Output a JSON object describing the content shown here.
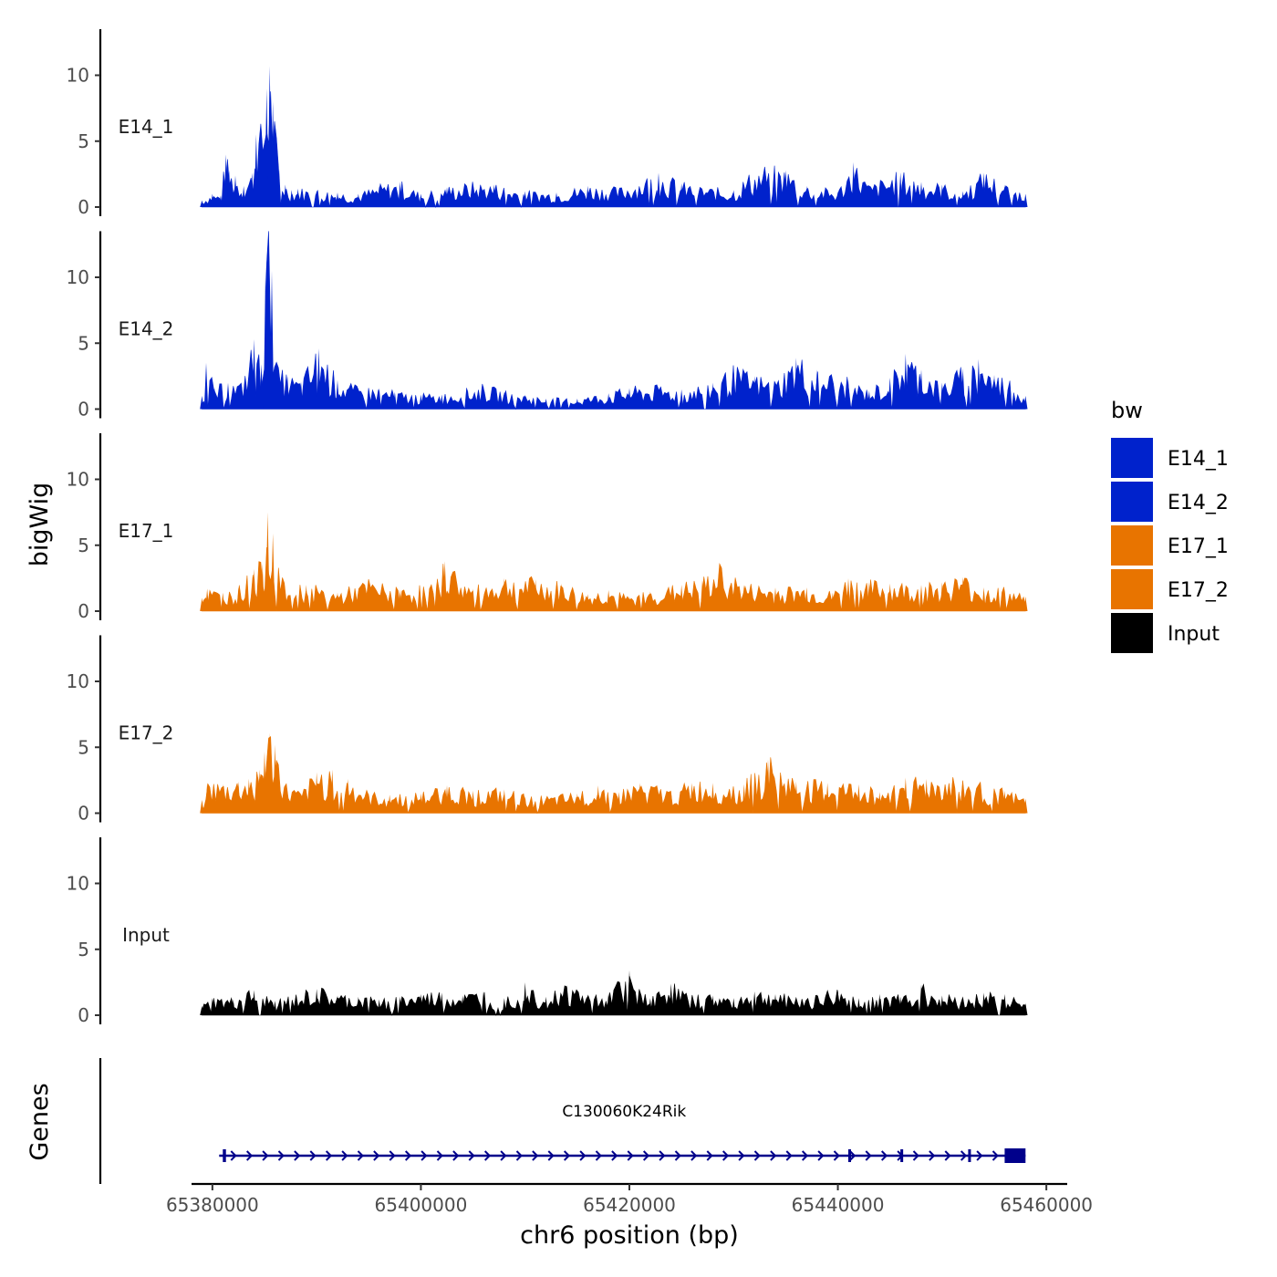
{
  "chart_data": {
    "type": "area",
    "chromosome": "chr6",
    "xlabel": "chr6 position (bp)",
    "ylabel_tracks": "bigWig",
    "ylabel_genes": "Genes",
    "xlim": [
      65378000,
      65462000
    ],
    "data_range": [
      65379000,
      65458000
    ],
    "x_ticks": [
      65380000,
      65400000,
      65420000,
      65440000,
      65460000
    ],
    "x_tick_labels": [
      "65380000",
      "65400000",
      "65420000",
      "65440000",
      "65460000"
    ],
    "ylim": [
      0,
      13.5
    ],
    "y_ticks": [
      0,
      5,
      10
    ],
    "y_tick_labels": [
      "0",
      "5",
      "10"
    ],
    "series": [
      {
        "name": "E14_1",
        "color": "#0022CC",
        "peaks": [
          [
            65379000,
            0.5
          ],
          [
            65380000,
            1.0
          ],
          [
            65380800,
            0.9
          ],
          [
            65381300,
            4.0
          ],
          [
            65381600,
            2.8
          ],
          [
            65382200,
            2.4
          ],
          [
            65383000,
            1.6
          ],
          [
            65383800,
            2.6
          ],
          [
            65384200,
            5.5
          ],
          [
            65384700,
            6.0
          ],
          [
            65385200,
            9.0
          ],
          [
            65385500,
            10.7
          ],
          [
            65385800,
            8.0
          ],
          [
            65386400,
            2.9
          ],
          [
            65387000,
            1.7
          ],
          [
            65387600,
            1.3
          ],
          [
            65388200,
            1.4
          ],
          [
            65390000,
            1.3
          ],
          [
            65392000,
            1.1
          ],
          [
            65394000,
            1.0
          ],
          [
            65396000,
            1.6
          ],
          [
            65398000,
            1.9
          ],
          [
            65400000,
            1.0
          ],
          [
            65402500,
            1.5
          ],
          [
            65405000,
            1.8
          ],
          [
            65407000,
            1.7
          ],
          [
            65410000,
            1.2
          ],
          [
            65413000,
            1.1
          ],
          [
            65416000,
            1.6
          ],
          [
            65419000,
            1.4
          ],
          [
            65422800,
            2.6
          ],
          [
            65425000,
            1.8
          ],
          [
            65428000,
            1.4
          ],
          [
            65430000,
            1.3
          ],
          [
            65431500,
            2.4
          ],
          [
            65433000,
            3.0
          ],
          [
            65435000,
            2.8
          ],
          [
            65437000,
            1.6
          ],
          [
            65440000,
            1.2
          ],
          [
            65441500,
            3.4
          ],
          [
            65443000,
            1.6
          ],
          [
            65446000,
            2.6
          ],
          [
            65448000,
            1.9
          ],
          [
            65450000,
            1.7
          ],
          [
            65452000,
            1.2
          ],
          [
            65454000,
            2.6
          ],
          [
            65456000,
            1.7
          ],
          [
            65458000,
            1.0
          ]
        ]
      },
      {
        "name": "E14_2",
        "color": "#0022CC",
        "peaks": [
          [
            65379000,
            1.0
          ],
          [
            65379400,
            3.5
          ],
          [
            65380200,
            1.6
          ],
          [
            65381500,
            2.0
          ],
          [
            65382800,
            1.9
          ],
          [
            65384000,
            5.3
          ],
          [
            65384700,
            3.4
          ],
          [
            65385100,
            11.0
          ],
          [
            65385400,
            13.0
          ],
          [
            65385700,
            10.5
          ],
          [
            65386200,
            3.0
          ],
          [
            65387200,
            2.5
          ],
          [
            65388500,
            2.1
          ],
          [
            65390200,
            4.6
          ],
          [
            65392000,
            2.2
          ],
          [
            65394000,
            1.6
          ],
          [
            65396000,
            1.6
          ],
          [
            65397500,
            1.3
          ],
          [
            65400000,
            1.1
          ],
          [
            65402000,
            1.1
          ],
          [
            65404500,
            1.5
          ],
          [
            65406000,
            1.8
          ],
          [
            65408000,
            1.3
          ],
          [
            65410000,
            1.1
          ],
          [
            65412000,
            0.8
          ],
          [
            65415000,
            0.8
          ],
          [
            65418000,
            1.2
          ],
          [
            65420000,
            1.6
          ],
          [
            65423000,
            1.7
          ],
          [
            65425000,
            1.5
          ],
          [
            65428000,
            2.0
          ],
          [
            65430000,
            3.1
          ],
          [
            65432000,
            2.5
          ],
          [
            65434000,
            2.1
          ],
          [
            65436000,
            3.9
          ],
          [
            65438000,
            3.0
          ],
          [
            65441000,
            2.2
          ],
          [
            65443000,
            1.4
          ],
          [
            65445000,
            2.4
          ],
          [
            65446500,
            4.2
          ],
          [
            65448000,
            3.0
          ],
          [
            65450000,
            2.0
          ],
          [
            65452000,
            3.1
          ],
          [
            65453500,
            3.8
          ],
          [
            65455000,
            2.6
          ],
          [
            65456500,
            2.2
          ],
          [
            65458000,
            1.0
          ]
        ]
      },
      {
        "name": "E17_1",
        "color": "#E87400",
        "peaks": [
          [
            65379000,
            1.0
          ],
          [
            65379500,
            1.7
          ],
          [
            65381000,
            1.4
          ],
          [
            65382500,
            1.8
          ],
          [
            65384000,
            3.2
          ],
          [
            65384800,
            3.6
          ],
          [
            65385300,
            7.5
          ],
          [
            65385800,
            5.9
          ],
          [
            65386800,
            2.0
          ],
          [
            65389000,
            2.0
          ],
          [
            65392000,
            1.4
          ],
          [
            65395000,
            2.3
          ],
          [
            65398000,
            1.6
          ],
          [
            65401500,
            2.2
          ],
          [
            65402300,
            3.8
          ],
          [
            65405000,
            1.7
          ],
          [
            65408000,
            2.5
          ],
          [
            65411000,
            2.4
          ],
          [
            65413500,
            2.1
          ],
          [
            65416000,
            1.3
          ],
          [
            65418000,
            1.6
          ],
          [
            65420000,
            1.1
          ],
          [
            65422000,
            1.5
          ],
          [
            65425000,
            2.0
          ],
          [
            65427000,
            2.4
          ],
          [
            65428800,
            3.4
          ],
          [
            65431000,
            2.0
          ],
          [
            65434000,
            1.8
          ],
          [
            65437000,
            1.8
          ],
          [
            65439500,
            1.4
          ],
          [
            65441000,
            2.5
          ],
          [
            65443000,
            2.2
          ],
          [
            65445000,
            2.1
          ],
          [
            65448000,
            2.0
          ],
          [
            65450000,
            2.2
          ],
          [
            65452000,
            2.6
          ],
          [
            65454000,
            1.8
          ],
          [
            65456000,
            1.7
          ],
          [
            65458000,
            1.1
          ]
        ]
      },
      {
        "name": "E17_2",
        "color": "#E87400",
        "peaks": [
          [
            65379000,
            1.0
          ],
          [
            65379500,
            2.3
          ],
          [
            65381000,
            2.2
          ],
          [
            65382500,
            2.4
          ],
          [
            65383500,
            2.6
          ],
          [
            65384500,
            3.3
          ],
          [
            65385000,
            4.7
          ],
          [
            65385500,
            6.1
          ],
          [
            65386000,
            5.2
          ],
          [
            65387000,
            2.2
          ],
          [
            65388500,
            1.5
          ],
          [
            65390000,
            3.1
          ],
          [
            65391500,
            3.3
          ],
          [
            65393000,
            2.6
          ],
          [
            65395000,
            1.5
          ],
          [
            65397000,
            1.4
          ],
          [
            65400000,
            1.5
          ],
          [
            65402500,
            2.1
          ],
          [
            65405000,
            1.7
          ],
          [
            65408000,
            1.8
          ],
          [
            65410000,
            1.3
          ],
          [
            65412500,
            1.2
          ],
          [
            65415000,
            1.5
          ],
          [
            65417000,
            2.1
          ],
          [
            65419000,
            1.6
          ],
          [
            65421000,
            2.3
          ],
          [
            65424000,
            1.7
          ],
          [
            65426000,
            2.3
          ],
          [
            65428000,
            2.3
          ],
          [
            65431000,
            2.2
          ],
          [
            65433300,
            4.1
          ],
          [
            65436000,
            2.4
          ],
          [
            65439000,
            2.3
          ],
          [
            65442000,
            2.2
          ],
          [
            65444000,
            1.6
          ],
          [
            65446500,
            2.7
          ],
          [
            65448500,
            2.6
          ],
          [
            65451000,
            2.7
          ],
          [
            65453500,
            2.2
          ],
          [
            65456000,
            1.7
          ],
          [
            65458000,
            1.1
          ]
        ]
      },
      {
        "name": "Input",
        "color": "#000000",
        "peaks": [
          [
            65379000,
            0.7
          ],
          [
            65380000,
            1.3
          ],
          [
            65382000,
            1.2
          ],
          [
            65384000,
            1.9
          ],
          [
            65386000,
            1.1
          ],
          [
            65388000,
            1.5
          ],
          [
            65390000,
            2.0
          ],
          [
            65392000,
            1.5
          ],
          [
            65394000,
            1.4
          ],
          [
            65396000,
            1.2
          ],
          [
            65398000,
            1.4
          ],
          [
            65400000,
            1.6
          ],
          [
            65402000,
            1.7
          ],
          [
            65404000,
            1.5
          ],
          [
            65406000,
            1.8
          ],
          [
            65408000,
            1.3
          ],
          [
            65410000,
            2.5
          ],
          [
            65412000,
            1.4
          ],
          [
            65414000,
            2.3
          ],
          [
            65416000,
            1.6
          ],
          [
            65418000,
            1.7
          ],
          [
            65420000,
            3.4
          ],
          [
            65422000,
            1.3
          ],
          [
            65424000,
            2.4
          ],
          [
            65426000,
            1.4
          ],
          [
            65428000,
            1.5
          ],
          [
            65430000,
            1.3
          ],
          [
            65432000,
            1.8
          ],
          [
            65434000,
            1.6
          ],
          [
            65436000,
            1.4
          ],
          [
            65438000,
            1.6
          ],
          [
            65440000,
            1.9
          ],
          [
            65442000,
            1.3
          ],
          [
            65444000,
            1.6
          ],
          [
            65446000,
            1.4
          ],
          [
            65448000,
            2.3
          ],
          [
            65450000,
            1.5
          ],
          [
            65452000,
            1.3
          ],
          [
            65454000,
            1.7
          ],
          [
            65456000,
            1.6
          ],
          [
            65458000,
            0.9
          ]
        ]
      }
    ],
    "legend": {
      "title": "bw",
      "position": "right",
      "items": [
        {
          "label": "E14_1",
          "color": "#0022CC"
        },
        {
          "label": "E14_2",
          "color": "#0022CC"
        },
        {
          "label": "E17_1",
          "color": "#E87400"
        },
        {
          "label": "E17_2",
          "color": "#E87400"
        },
        {
          "label": "Input",
          "color": "#000000"
        }
      ]
    },
    "genes": [
      {
        "name": "C130060K24Rik",
        "strand": "+",
        "start": 65381000,
        "end": 65458000,
        "color": "#00008B",
        "exons": [
          [
            65381000,
            65381300
          ],
          [
            65441000,
            65441200
          ],
          [
            65446000,
            65446100
          ],
          [
            65452500,
            65452700
          ],
          [
            65456000,
            65458000
          ]
        ]
      }
    ]
  }
}
